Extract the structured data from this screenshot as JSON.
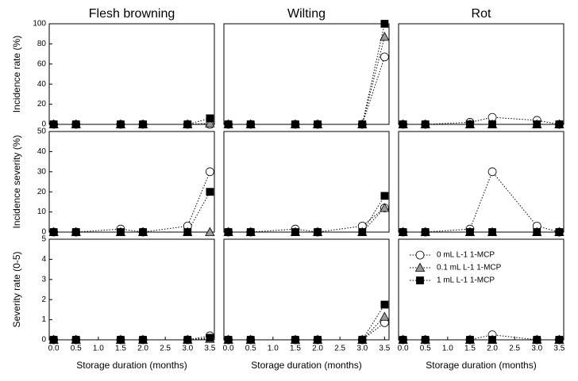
{
  "chart_data": [
    {
      "type": "scatter",
      "title": "Flesh browning",
      "ylabel": "Incidence rate (%)",
      "x": [
        0,
        0.5,
        1.5,
        2,
        3,
        3.5
      ],
      "xlim": [
        -0.1,
        3.6
      ],
      "ylim": [
        0,
        100
      ],
      "yticks": [
        0,
        20,
        40,
        60,
        80,
        100
      ],
      "series": [
        {
          "color": "#ffffff",
          "marker": "circle",
          "values": [
            0,
            0,
            0,
            0,
            0,
            0
          ]
        },
        {
          "color": "#999999",
          "marker": "triangle",
          "values": [
            0,
            0,
            0,
            0,
            0,
            1
          ]
        },
        {
          "color": "#000000",
          "marker": "square",
          "values": [
            0,
            0,
            0,
            0,
            0,
            6
          ]
        }
      ]
    },
    {
      "type": "scatter",
      "title": "Wilting",
      "x": [
        0,
        0.5,
        1.5,
        2,
        3,
        3.5
      ],
      "xlim": [
        -0.1,
        3.6
      ],
      "ylim": [
        0,
        100
      ],
      "series": [
        {
          "color": "#ffffff",
          "marker": "circle",
          "values": [
            0,
            0,
            0,
            0,
            0,
            67
          ]
        },
        {
          "color": "#999999",
          "marker": "triangle",
          "values": [
            0,
            0,
            0,
            0,
            0,
            87
          ]
        },
        {
          "color": "#000000",
          "marker": "square",
          "values": [
            0,
            0,
            0,
            0,
            0,
            100
          ]
        }
      ]
    },
    {
      "type": "scatter",
      "title": "Rot",
      "x": [
        0,
        0.5,
        1.5,
        2,
        3,
        3.5
      ],
      "xlim": [
        -0.1,
        3.6
      ],
      "ylim": [
        0,
        100
      ],
      "series": [
        {
          "color": "#ffffff",
          "marker": "circle",
          "values": [
            0,
            0,
            2,
            7,
            4,
            0
          ]
        },
        {
          "color": "#999999",
          "marker": "triangle",
          "values": [
            0,
            0,
            0,
            0,
            0,
            0
          ]
        },
        {
          "color": "#000000",
          "marker": "square",
          "values": [
            0,
            0,
            0,
            0,
            0,
            0
          ]
        }
      ]
    },
    {
      "type": "scatter",
      "ylabel": "Incidence severity (%)",
      "x": [
        0,
        0.5,
        1.5,
        2,
        3,
        3.5
      ],
      "xlim": [
        -0.1,
        3.6
      ],
      "ylim": [
        0,
        50
      ],
      "yticks": [
        0,
        10,
        20,
        30,
        40,
        50
      ],
      "series": [
        {
          "color": "#ffffff",
          "marker": "circle",
          "values": [
            0,
            0,
            1.5,
            0,
            3,
            30
          ]
        },
        {
          "color": "#999999",
          "marker": "triangle",
          "values": [
            0,
            0,
            0,
            0,
            0,
            0
          ]
        },
        {
          "color": "#000000",
          "marker": "square",
          "values": [
            0,
            0,
            0,
            0,
            0,
            20
          ]
        }
      ]
    },
    {
      "type": "scatter",
      "x": [
        0,
        0.5,
        1.5,
        2,
        3,
        3.5
      ],
      "xlim": [
        -0.1,
        3.6
      ],
      "ylim": [
        0,
        50
      ],
      "series": [
        {
          "color": "#ffffff",
          "marker": "circle",
          "values": [
            0,
            0,
            1.5,
            0,
            3,
            12
          ]
        },
        {
          "color": "#999999",
          "marker": "triangle",
          "values": [
            0,
            0,
            0,
            0,
            0,
            12
          ]
        },
        {
          "color": "#000000",
          "marker": "square",
          "values": [
            0,
            0,
            0,
            0,
            0,
            18
          ]
        }
      ]
    },
    {
      "type": "scatter",
      "x": [
        0,
        0.5,
        1.5,
        2,
        3,
        3.5
      ],
      "xlim": [
        -0.1,
        3.6
      ],
      "ylim": [
        0,
        50
      ],
      "series": [
        {
          "color": "#ffffff",
          "marker": "circle",
          "values": [
            0,
            0,
            1.5,
            30,
            3,
            0
          ]
        },
        {
          "color": "#999999",
          "marker": "triangle",
          "values": [
            0,
            0,
            0,
            0,
            0,
            0
          ]
        },
        {
          "color": "#000000",
          "marker": "square",
          "values": [
            0,
            0,
            0,
            0,
            0,
            0
          ]
        }
      ]
    },
    {
      "type": "scatter",
      "ylabel": "Severity rate (0-5)",
      "xlabel": "Storage duration (months)",
      "x": [
        0,
        0.5,
        1.5,
        2,
        3,
        3.5
      ],
      "xlim": [
        -0.1,
        3.6
      ],
      "ylim": [
        0,
        5
      ],
      "yticks": [
        0,
        1,
        2,
        3,
        4,
        5
      ],
      "xticks": [
        {
          "value": 0,
          "label": "0.0"
        },
        0.5,
        {
          "value": 1,
          "label": "1.0"
        },
        1.5,
        {
          "value": 2,
          "label": "2.0"
        },
        2.5,
        {
          "value": 3,
          "label": "3.0"
        },
        3.5
      ],
      "series": [
        {
          "color": "#ffffff",
          "marker": "circle",
          "values": [
            0,
            0,
            0,
            0,
            0,
            0.2
          ]
        },
        {
          "color": "#999999",
          "marker": "triangle",
          "values": [
            0,
            0,
            0,
            0,
            0,
            0.05
          ]
        },
        {
          "color": "#000000",
          "marker": "square",
          "values": [
            0,
            0,
            0,
            0,
            0,
            0.1
          ]
        }
      ]
    },
    {
      "type": "scatter",
      "xlabel": "Storage duration (months)",
      "x": [
        0,
        0.5,
        1.5,
        2,
        3,
        3.5
      ],
      "xlim": [
        -0.1,
        3.6
      ],
      "ylim": [
        0,
        5
      ],
      "xticks": [
        {
          "value": 0,
          "label": "0.0"
        },
        0.5,
        {
          "value": 1,
          "label": "1.0"
        },
        1.5,
        {
          "value": 2,
          "label": "2.0"
        },
        2.5,
        {
          "value": 3,
          "label": "3.0"
        },
        3.5
      ],
      "series": [
        {
          "color": "#ffffff",
          "marker": "circle",
          "values": [
            0,
            0,
            0,
            0,
            0,
            0.85
          ]
        },
        {
          "color": "#999999",
          "marker": "triangle",
          "values": [
            0,
            0,
            0,
            0,
            0,
            1.15
          ]
        },
        {
          "color": "#000000",
          "marker": "square",
          "values": [
            0,
            0,
            0,
            0,
            0,
            1.75
          ]
        }
      ]
    },
    {
      "type": "scatter",
      "xlabel": "Storage duration (months)",
      "x": [
        0,
        0.5,
        1.5,
        2,
        3,
        3.5
      ],
      "xlim": [
        -0.1,
        3.6
      ],
      "ylim": [
        0,
        5
      ],
      "xticks": [
        {
          "value": 0,
          "label": "0.0"
        },
        0.5,
        {
          "value": 1,
          "label": "1.0"
        },
        1.5,
        {
          "value": 2,
          "label": "2.0"
        },
        2.5,
        {
          "value": 3,
          "label": "3.0"
        },
        3.5
      ],
      "series": [
        {
          "name": "0 mL L-1 1-MCP",
          "color": "#ffffff",
          "marker": "circle",
          "values": [
            0,
            0,
            0,
            0.25,
            0,
            0
          ]
        },
        {
          "name": "0.1 mL L-1 1-MCP",
          "color": "#999999",
          "marker": "triangle",
          "values": [
            0,
            0,
            0,
            0,
            0,
            0
          ]
        },
        {
          "name": "1 mL L-1 1-MCP",
          "color": "#000000",
          "marker": "square",
          "values": [
            0,
            0,
            0,
            0,
            0,
            0
          ]
        }
      ]
    }
  ]
}
